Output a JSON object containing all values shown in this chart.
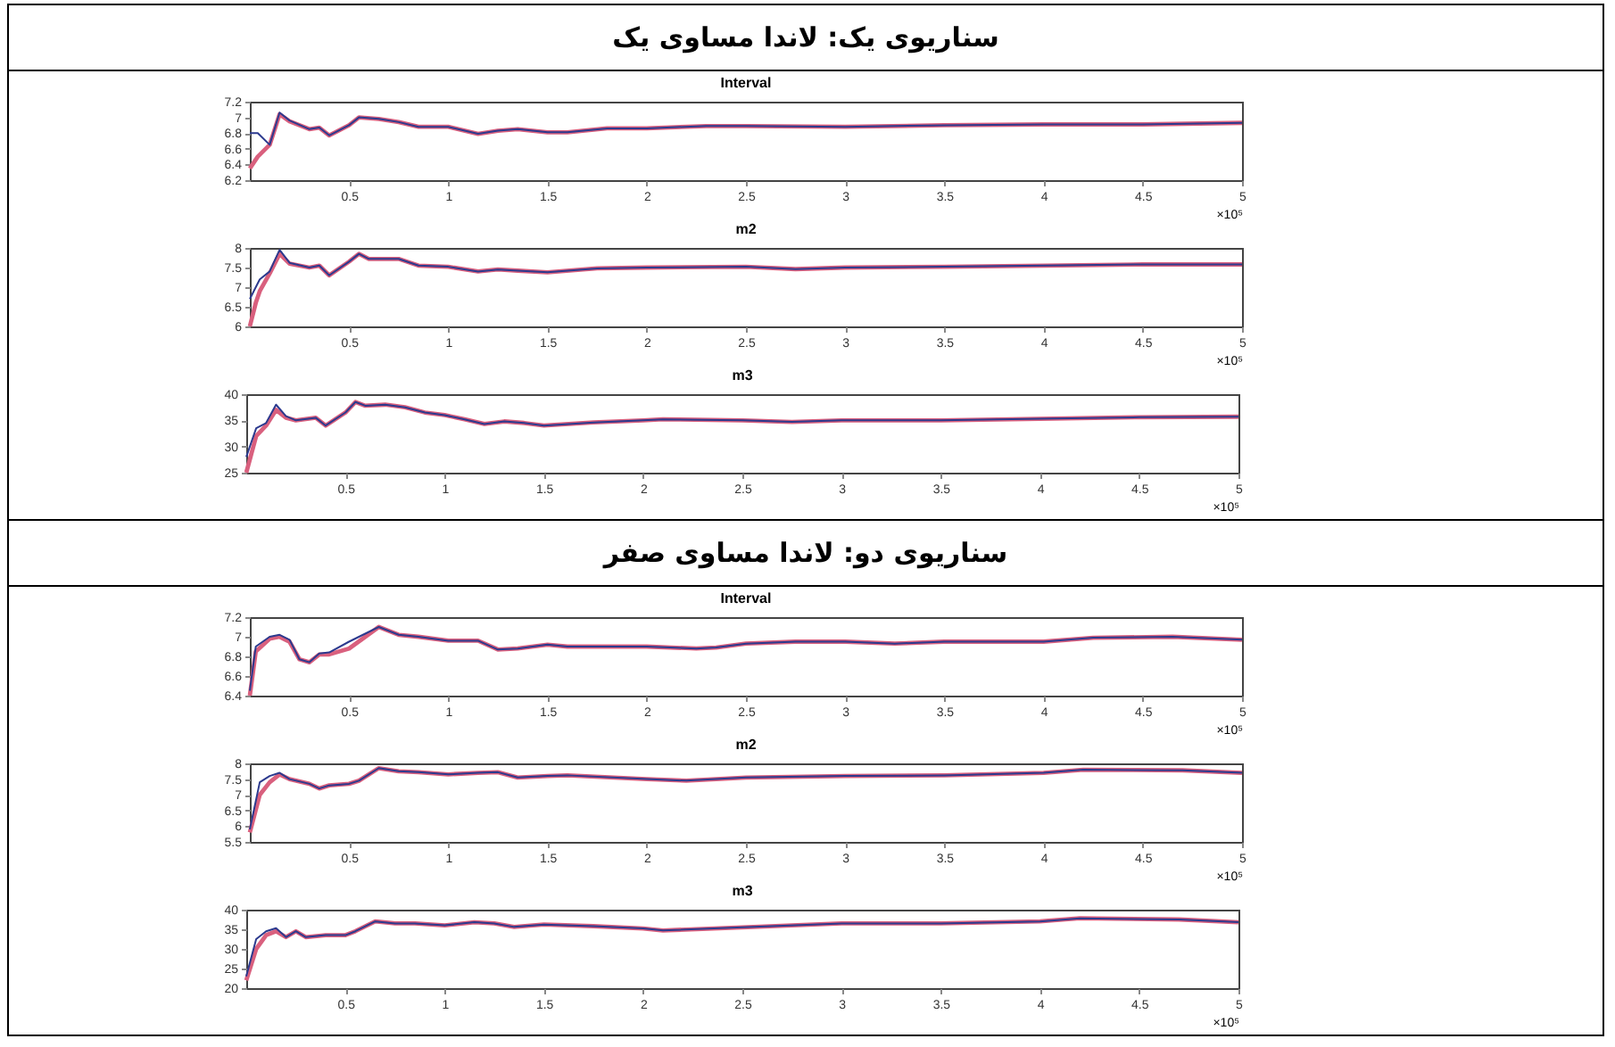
{
  "chart_data": [
    {
      "type": "line",
      "title": "سناریوی یک: لاندا مساوی یک",
      "subtitle": "Interval",
      "xlabel": "×10⁵",
      "xlim": [
        0,
        5
      ],
      "xticks": [
        0.5,
        1,
        1.5,
        2,
        2.5,
        3,
        3.5,
        4,
        4.5,
        5
      ],
      "ylim": [
        6.2,
        7.2
      ],
      "yticks": [
        6.2,
        6.4,
        6.6,
        6.8,
        7,
        7.2
      ],
      "grid": false,
      "legend": false,
      "series": [
        {
          "color": "#2c3a8e",
          "x": [
            0,
            0.04,
            0.1,
            0.15,
            0.2,
            0.3,
            0.35,
            0.4,
            0.5,
            0.55,
            0.65,
            0.75,
            0.85,
            1,
            1.15,
            1.25,
            1.35,
            1.5,
            1.6,
            1.8,
            2,
            2.3,
            2.5,
            3,
            3.5,
            4,
            4.5,
            5
          ],
          "values": [
            6.8,
            6.8,
            6.65,
            7.06,
            6.96,
            6.85,
            6.87,
            6.77,
            6.9,
            7,
            6.98,
            6.94,
            6.88,
            6.88,
            6.79,
            6.83,
            6.85,
            6.81,
            6.81,
            6.86,
            6.86,
            6.89,
            6.89,
            6.88,
            6.9,
            6.91,
            6.91,
            6.93
          ]
        },
        {
          "color": "#d9607e",
          "x": [
            0,
            0.04,
            0.1,
            0.15,
            0.2,
            0.3,
            0.35,
            0.4,
            0.5,
            0.55,
            0.65,
            0.75,
            0.85,
            1,
            1.15,
            1.25,
            1.35,
            1.5,
            1.6,
            1.8,
            2,
            2.3,
            2.5,
            3,
            3.5,
            4,
            4.5,
            5
          ],
          "values": [
            6.35,
            6.5,
            6.65,
            7.04,
            6.95,
            6.85,
            6.87,
            6.77,
            6.9,
            7,
            6.98,
            6.94,
            6.88,
            6.88,
            6.79,
            6.83,
            6.85,
            6.81,
            6.81,
            6.86,
            6.86,
            6.89,
            6.89,
            6.88,
            6.9,
            6.91,
            6.91,
            6.93
          ]
        }
      ]
    },
    {
      "type": "line",
      "title": "m2",
      "xlabel": "×10⁵",
      "xlim": [
        0,
        5
      ],
      "xticks": [
        0.5,
        1,
        1.5,
        2,
        2.5,
        3,
        3.5,
        4,
        4.5,
        5
      ],
      "ylim": [
        6,
        8
      ],
      "yticks": [
        6,
        6.5,
        7,
        7.5,
        8
      ],
      "grid": false,
      "legend": false,
      "series": [
        {
          "color": "#2c3a8e",
          "x": [
            0,
            0.03,
            0.05,
            0.1,
            0.15,
            0.2,
            0.3,
            0.35,
            0.4,
            0.5,
            0.55,
            0.6,
            0.75,
            0.85,
            1,
            1.15,
            1.25,
            1.35,
            1.5,
            1.75,
            2,
            2.5,
            2.75,
            3,
            3.5,
            4,
            4.5,
            5
          ],
          "values": [
            6.7,
            7,
            7.2,
            7.4,
            7.95,
            7.62,
            7.5,
            7.55,
            7.3,
            7.65,
            7.85,
            7.72,
            7.72,
            7.55,
            7.52,
            7.4,
            7.45,
            7.42,
            7.38,
            7.48,
            7.5,
            7.52,
            7.46,
            7.5,
            7.52,
            7.55,
            7.58,
            7.58
          ]
        },
        {
          "color": "#d9607e",
          "x": [
            0,
            0.03,
            0.05,
            0.1,
            0.15,
            0.2,
            0.3,
            0.35,
            0.4,
            0.5,
            0.55,
            0.6,
            0.75,
            0.85,
            1,
            1.15,
            1.25,
            1.35,
            1.5,
            1.75,
            2,
            2.5,
            2.75,
            3,
            3.5,
            4,
            4.5,
            5
          ],
          "values": [
            6,
            6.6,
            6.9,
            7.35,
            7.85,
            7.6,
            7.5,
            7.55,
            7.3,
            7.65,
            7.85,
            7.72,
            7.72,
            7.55,
            7.52,
            7.4,
            7.45,
            7.42,
            7.38,
            7.48,
            7.5,
            7.52,
            7.46,
            7.5,
            7.52,
            7.55,
            7.58,
            7.58
          ]
        }
      ]
    },
    {
      "type": "line",
      "title": "m3",
      "xlabel": "×10⁵",
      "xlim": [
        0,
        5
      ],
      "xticks": [
        0.5,
        1,
        1.5,
        2,
        2.5,
        3,
        3.5,
        4,
        4.5,
        5
      ],
      "ylim": [
        25,
        40
      ],
      "yticks": [
        25,
        30,
        35,
        40
      ],
      "grid": false,
      "legend": false,
      "series": [
        {
          "color": "#2c3a8e",
          "x": [
            0,
            0.05,
            0.1,
            0.15,
            0.2,
            0.25,
            0.35,
            0.4,
            0.5,
            0.55,
            0.6,
            0.7,
            0.8,
            0.9,
            1,
            1.1,
            1.2,
            1.3,
            1.4,
            1.5,
            1.75,
            2,
            2.1,
            2.5,
            2.75,
            3,
            3.5,
            4,
            4.5,
            5
          ],
          "values": [
            28,
            33.5,
            34.5,
            38,
            35.8,
            35,
            35.5,
            34,
            36.5,
            38.5,
            37.8,
            38,
            37.5,
            36.5,
            36,
            35.2,
            34.3,
            34.8,
            34.5,
            34,
            34.6,
            35,
            35.2,
            35,
            34.7,
            35,
            35,
            35.3,
            35.6,
            35.7
          ]
        },
        {
          "color": "#d9607e",
          "x": [
            0,
            0.05,
            0.1,
            0.15,
            0.2,
            0.25,
            0.35,
            0.4,
            0.5,
            0.55,
            0.6,
            0.7,
            0.8,
            0.9,
            1,
            1.1,
            1.2,
            1.3,
            1.4,
            1.5,
            1.75,
            2,
            2.1,
            2.5,
            2.75,
            3,
            3.5,
            4,
            4.5,
            5
          ],
          "values": [
            25,
            32,
            34,
            37,
            35.5,
            35,
            35.5,
            34,
            36.5,
            38.5,
            37.8,
            38,
            37.5,
            36.5,
            36,
            35.2,
            34.3,
            34.8,
            34.5,
            34,
            34.6,
            35,
            35.2,
            35,
            34.7,
            35,
            35,
            35.3,
            35.6,
            35.7
          ]
        }
      ]
    },
    {
      "type": "line",
      "title": "سناریوی دو: لاندا مساوی صفر",
      "subtitle": "Interval",
      "xlabel": "×10⁵",
      "xlim": [
        0,
        5
      ],
      "xticks": [
        0.5,
        1,
        1.5,
        2,
        2.5,
        3,
        3.5,
        4,
        4.5,
        5
      ],
      "ylim": [
        6.4,
        7.2
      ],
      "yticks": [
        6.4,
        6.6,
        6.8,
        7,
        7.2
      ],
      "grid": false,
      "legend": false,
      "series": [
        {
          "color": "#2c3a8e",
          "x": [
            0,
            0.03,
            0.1,
            0.15,
            0.2,
            0.25,
            0.3,
            0.35,
            0.4,
            0.5,
            0.65,
            0.75,
            0.85,
            1,
            1.15,
            1.25,
            1.35,
            1.5,
            1.6,
            2,
            2.25,
            2.35,
            2.5,
            2.75,
            3,
            3.25,
            3.5,
            4,
            4.25,
            4.65,
            5
          ],
          "values": [
            6.45,
            6.9,
            7,
            7.02,
            6.97,
            6.77,
            6.74,
            6.83,
            6.84,
            6.95,
            7.1,
            7.02,
            7,
            6.96,
            6.96,
            6.87,
            6.88,
            6.92,
            6.9,
            6.9,
            6.88,
            6.89,
            6.93,
            6.95,
            6.95,
            6.93,
            6.95,
            6.95,
            6.99,
            7,
            6.97
          ]
        },
        {
          "color": "#d9607e",
          "x": [
            0,
            0.03,
            0.1,
            0.15,
            0.2,
            0.25,
            0.3,
            0.35,
            0.4,
            0.5,
            0.65,
            0.75,
            0.85,
            1,
            1.15,
            1.25,
            1.35,
            1.5,
            1.6,
            2,
            2.25,
            2.35,
            2.5,
            2.75,
            3,
            3.25,
            3.5,
            4,
            4.25,
            4.65,
            5
          ],
          "values": [
            6.4,
            6.85,
            6.98,
            7,
            6.95,
            6.77,
            6.74,
            6.82,
            6.82,
            6.88,
            7.1,
            7.02,
            7,
            6.96,
            6.96,
            6.87,
            6.88,
            6.92,
            6.9,
            6.9,
            6.88,
            6.89,
            6.93,
            6.95,
            6.95,
            6.93,
            6.95,
            6.95,
            6.99,
            7,
            6.97
          ]
        }
      ]
    },
    {
      "type": "line",
      "title": "m2",
      "xlabel": "×10⁵",
      "xlim": [
        0,
        5
      ],
      "xticks": [
        0.5,
        1,
        1.5,
        2,
        2.5,
        3,
        3.5,
        4,
        4.5,
        5
      ],
      "ylim": [
        5.5,
        8
      ],
      "yticks": [
        5.5,
        6,
        6.5,
        7,
        7.5,
        8
      ],
      "grid": false,
      "legend": false,
      "series": [
        {
          "color": "#2c3a8e",
          "x": [
            0,
            0.05,
            0.1,
            0.15,
            0.2,
            0.3,
            0.35,
            0.4,
            0.5,
            0.55,
            0.65,
            0.75,
            0.85,
            1,
            1.15,
            1.25,
            1.35,
            1.5,
            1.6,
            2,
            2.2,
            2.5,
            3,
            3.5,
            4,
            4.2,
            4.7,
            5
          ],
          "values": [
            5.9,
            7.4,
            7.6,
            7.7,
            7.5,
            7.35,
            7.2,
            7.3,
            7.35,
            7.45,
            7.85,
            7.75,
            7.72,
            7.65,
            7.7,
            7.72,
            7.55,
            7.6,
            7.62,
            7.5,
            7.45,
            7.55,
            7.6,
            7.62,
            7.7,
            7.8,
            7.78,
            7.7
          ]
        },
        {
          "color": "#d9607e",
          "x": [
            0,
            0.05,
            0.1,
            0.15,
            0.2,
            0.3,
            0.35,
            0.4,
            0.5,
            0.55,
            0.65,
            0.75,
            0.85,
            1,
            1.15,
            1.25,
            1.35,
            1.5,
            1.6,
            2,
            2.2,
            2.5,
            3,
            3.5,
            4,
            4.2,
            4.7,
            5
          ],
          "values": [
            5.8,
            7,
            7.4,
            7.65,
            7.5,
            7.35,
            7.2,
            7.3,
            7.35,
            7.45,
            7.85,
            7.75,
            7.72,
            7.65,
            7.7,
            7.72,
            7.55,
            7.6,
            7.62,
            7.5,
            7.45,
            7.55,
            7.6,
            7.62,
            7.7,
            7.8,
            7.78,
            7.7
          ]
        }
      ]
    },
    {
      "type": "line",
      "title": "m3",
      "xlabel": "×10⁵",
      "xlim": [
        0,
        5
      ],
      "xticks": [
        0.5,
        1,
        1.5,
        2,
        2.5,
        3,
        3.5,
        4,
        4.5,
        5
      ],
      "ylim": [
        20,
        40
      ],
      "yticks": [
        20,
        25,
        30,
        35,
        40
      ],
      "grid": false,
      "legend": false,
      "series": [
        {
          "color": "#2c3a8e",
          "x": [
            0,
            0.05,
            0.1,
            0.15,
            0.2,
            0.25,
            0.3,
            0.4,
            0.5,
            0.55,
            0.65,
            0.75,
            0.85,
            1,
            1.15,
            1.25,
            1.35,
            1.5,
            1.75,
            2,
            2.1,
            2.5,
            3,
            3.5,
            4,
            4.2,
            4.7,
            5
          ],
          "values": [
            23,
            32.5,
            34.5,
            35.3,
            33,
            34.5,
            33,
            33.5,
            33.5,
            34.5,
            37,
            36.5,
            36.5,
            36,
            36.8,
            36.5,
            35.6,
            36.2,
            35.8,
            35.2,
            34.7,
            35.5,
            36.5,
            36.5,
            37,
            37.8,
            37.5,
            36.8
          ]
        },
        {
          "color": "#d9607e",
          "x": [
            0,
            0.05,
            0.1,
            0.15,
            0.2,
            0.25,
            0.3,
            0.4,
            0.5,
            0.55,
            0.65,
            0.75,
            0.85,
            1,
            1.15,
            1.25,
            1.35,
            1.5,
            1.75,
            2,
            2.1,
            2.5,
            3,
            3.5,
            4,
            4.2,
            4.7,
            5
          ],
          "values": [
            22,
            30,
            33.5,
            34.5,
            33,
            34.5,
            33,
            33.5,
            33.5,
            34.5,
            37,
            36.5,
            36.5,
            36,
            36.8,
            36.5,
            35.6,
            36.2,
            35.8,
            35.2,
            34.7,
            35.5,
            36.5,
            36.5,
            37,
            37.8,
            37.5,
            36.8
          ]
        }
      ]
    }
  ]
}
